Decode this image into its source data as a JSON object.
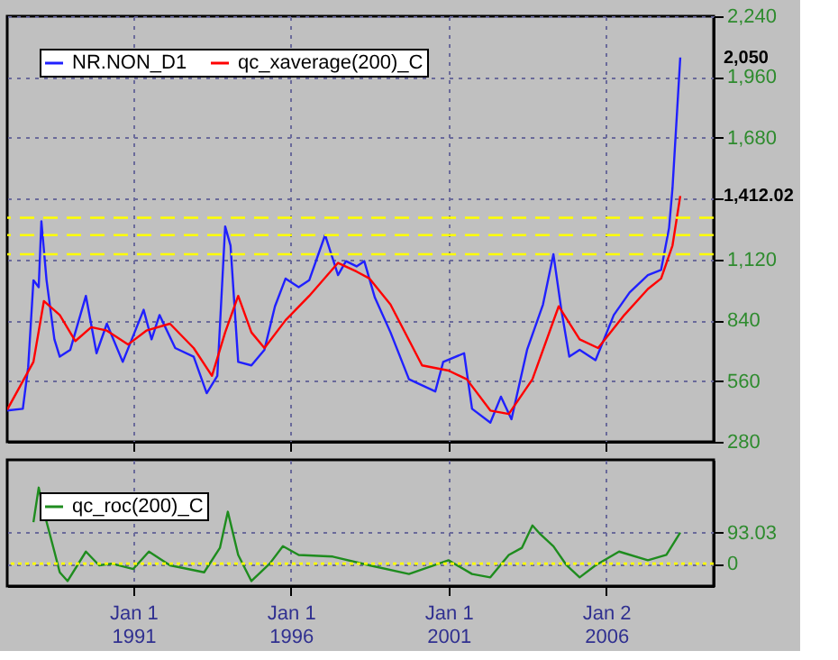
{
  "chart_data": [
    {
      "type": "line",
      "legend": "top left",
      "grid": true,
      "tick_labels": "y",
      "xlim": [
        "1987-01-01",
        "2009-06-01"
      ],
      "xticks": [
        {
          "value": "1991-01-01",
          "label": null
        },
        {
          "value": "1996-01-01",
          "label": null
        },
        {
          "value": "2001-01-01",
          "label": null
        },
        {
          "value": "2006-01-02",
          "label": null
        }
      ],
      "ylim": [
        280,
        2240
      ],
      "yticks": [
        280,
        560,
        840,
        {
          "value": 1120,
          "label": "1,120"
        },
        {
          "value": 1400,
          "label": null
        },
        {
          "value": 1680,
          "label": "1,680"
        },
        {
          "value": 1960,
          "label": "1,960"
        },
        {
          "value": 2240,
          "label": "2,240"
        }
      ],
      "series": [
        {
          "name": "NR.NON_D1",
          "color": "#2020ff",
          "x": [
            "1987-01",
            "1987-07",
            "1987-09",
            "1987-11",
            "1988-01",
            "1988-02",
            "1988-04",
            "1988-07",
            "1988-09",
            "1989-01",
            "1989-07",
            "1989-11",
            "1990-03",
            "1990-09",
            "1991-05",
            "1991-08",
            "1991-11",
            "1992-05",
            "1992-12",
            "1993-05",
            "1993-09",
            "1993-12",
            "1994-02",
            "1994-05",
            "1994-10",
            "1995-03",
            "1995-07",
            "1995-11",
            "1996-04",
            "1996-08",
            "1997-02",
            "1997-07",
            "1997-10",
            "1998-02",
            "1998-05",
            "1998-09",
            "1999-03",
            "1999-10",
            "2000-08",
            "2000-11",
            "2001-07",
            "2001-10",
            "2002-05",
            "2002-09",
            "2003-01",
            "2003-07",
            "2004-01",
            "2004-05",
            "2004-08",
            "2004-11",
            "2005-03",
            "2005-09",
            "2006-04",
            "2006-10",
            "2007-05",
            "2007-10",
            "2008-01",
            "2008-02-10",
            "2008-04-10",
            "2008-05-10"
          ],
          "values": [
            424,
            432,
            624,
            1024,
            992,
            1296,
            1024,
            752,
            672,
            704,
            952,
            688,
            824,
            648,
            888,
            752,
            864,
            712,
            672,
            504,
            584,
            1272,
            1184,
            648,
            632,
            704,
            904,
            1032,
            992,
            1024,
            1232,
            1048,
            1112,
            1088,
            1112,
            944,
            784,
            568,
            512,
            648,
            688,
            432,
            368,
            488,
            384,
            704,
            912,
            1144,
            888,
            672,
            704,
            656,
            864,
            968,
            1048,
            1072,
            1264,
            1448,
            1848,
            2050
          ]
        },
        {
          "name": "qc_xaverage(200)_C",
          "color": "#ff0000",
          "x": [
            "1987-01",
            "1987-11",
            "1988-03",
            "1988-09",
            "1989-03",
            "1989-09",
            "1990-03",
            "1990-11",
            "1991-06",
            "1992-03",
            "1992-12",
            "1993-07",
            "1993-12",
            "1994-05",
            "1994-10",
            "1995-03",
            "1995-11",
            "1996-08",
            "1997-07",
            "1998-02",
            "1998-07",
            "1999-03",
            "2000-03",
            "2001-01",
            "2001-08",
            "2002-05",
            "2002-12",
            "2003-09",
            "2004-07",
            "2005-03",
            "2005-10",
            "2006-08",
            "2007-05",
            "2007-10",
            "2008-02-10",
            "2008-05-10"
          ],
          "values": [
            428,
            648,
            928,
            864,
            744,
            808,
            792,
            728,
            792,
            824,
            712,
            584,
            784,
            952,
            784,
            712,
            840,
            952,
            1104,
            1064,
            1032,
            912,
            632,
            608,
            568,
            424,
            408,
            568,
            904,
            752,
            712,
            864,
            984,
            1032,
            1184,
            1412.02
          ]
        }
      ],
      "ref_lines": [
        {
          "axis": "y",
          "value": 1312,
          "color": "#ffff00",
          "line_style": "dashed"
        },
        {
          "axis": "y",
          "value": 1232,
          "color": "#ffff00",
          "line_style": "dashed"
        },
        {
          "axis": "y",
          "value": 1144,
          "color": "#ffff00",
          "line_style": "dashed"
        }
      ],
      "annotations": [
        {
          "text": "2,050",
          "x": "2008-05-10",
          "y": 2050
        },
        {
          "text": "1,412.02",
          "x": "2008-05-10",
          "y": 1412.02
        }
      ]
    },
    {
      "type": "line",
      "legend": "top left",
      "grid": true,
      "xlim": [
        "1987-01-01",
        "2009-06-01"
      ],
      "xticks": [
        {
          "value": "1991-01-01",
          "label": "Jan 1\n1991"
        },
        {
          "value": "1996-01-01",
          "label": "Jan 1\n1996"
        },
        {
          "value": "2001-01-01",
          "label": "Jan 1\n2001"
        },
        {
          "value": "2006-01-02",
          "label": "Jan 2\n2006"
        }
      ],
      "ylim": [
        -67,
        310
      ],
      "yticks": [
        0,
        93.03
      ],
      "series": [
        {
          "name": "qc_roc(200)_C",
          "color": "#1e8c1e",
          "x": [
            "1987-11",
            "1988-01",
            "1988-03",
            "1988-07",
            "1988-09",
            "1988-12",
            "1989-07",
            "1989-12",
            "1990-05",
            "1991-01",
            "1991-07",
            "1992-03",
            "1993-04",
            "1993-10",
            "1994-01",
            "1994-05",
            "1994-10",
            "1995-05",
            "1995-10",
            "1996-04",
            "1997-05",
            "1998-07",
            "1999-10",
            "2001-01",
            "2001-10",
            "2002-05",
            "2002-12",
            "2003-05",
            "2003-09",
            "2003-12",
            "2004-05",
            "2004-10",
            "2005-03",
            "2005-09",
            "2006-06",
            "2007-05",
            "2007-12",
            "2008-05-10"
          ],
          "values": [
            124,
            227,
            155,
            36,
            -26,
            -52,
            36,
            -5,
            0,
            -16,
            36,
            -5,
            -26,
            47,
            155,
            26,
            -52,
            0,
            52,
            26,
            21,
            -5,
            -31,
            10,
            -31,
            -41,
            26,
            47,
            114,
            88,
            52,
            -5,
            -41,
            -5,
            36,
            10,
            26,
            93.03
          ]
        }
      ],
      "ref_lines": [
        {
          "axis": "y",
          "value": 0,
          "color": "#ffff00",
          "line_style": "dotted"
        }
      ]
    }
  ]
}
